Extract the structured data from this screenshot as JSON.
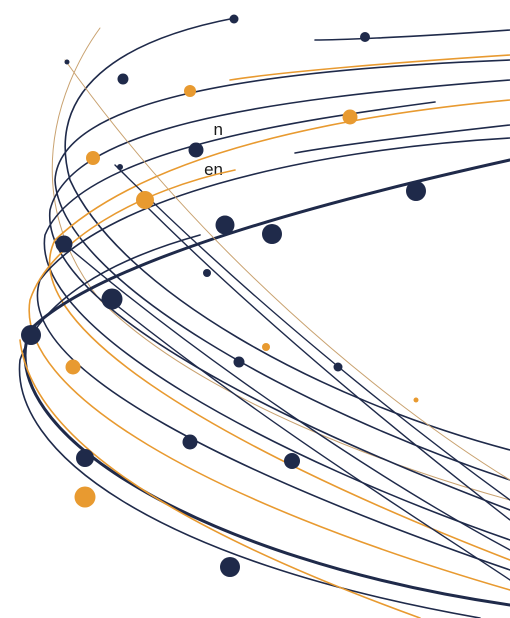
{
  "text_fragments": [
    "n",
    "en"
  ],
  "graphic": {
    "icon": "swoosh-lines-graphic",
    "colors": {
      "navy": "#1f2a4a",
      "orange": "#e89a30",
      "tan": "#c9a270"
    }
  }
}
